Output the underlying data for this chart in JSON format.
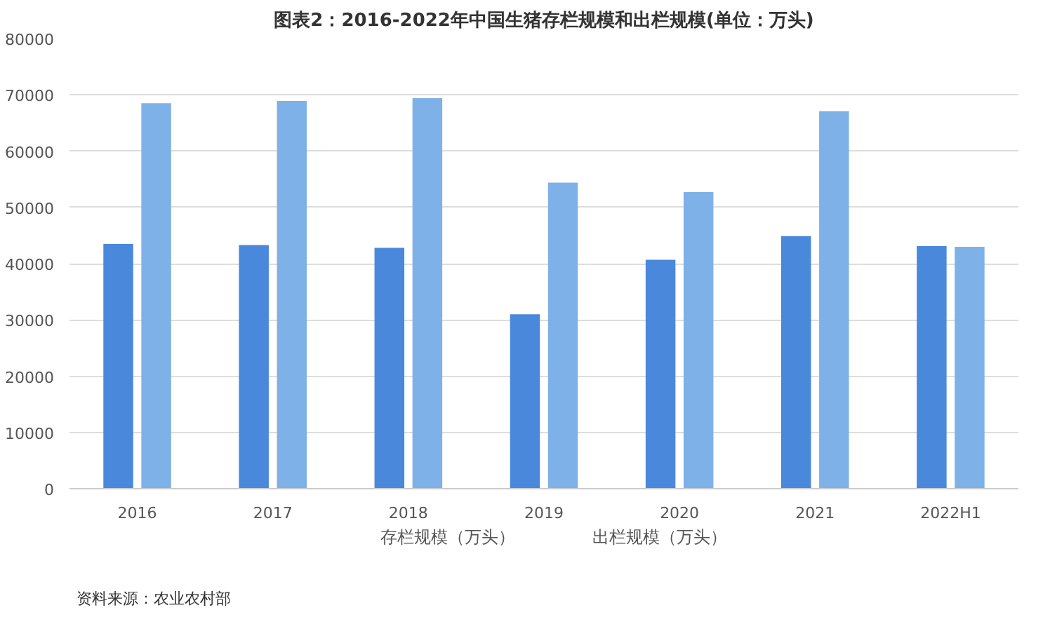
{
  "chart_data": {
    "type": "bar",
    "title": "图表2：2016-2022年中国生猪存栏规模和出栏规模(单位：万头)",
    "categories": [
      "2016",
      "2017",
      "2018",
      "2019",
      "2020",
      "2021",
      "2022H1"
    ],
    "series": [
      {
        "name": "存栏规模（万头）",
        "color": "#4a88dc",
        "values": [
          43500,
          43300,
          42800,
          31000,
          40700,
          44900,
          43100
        ]
      },
      {
        "name": "出栏规模（万头）",
        "color": "#7fb1e9",
        "values": [
          68500,
          68900,
          69400,
          54400,
          52700,
          67100,
          43000
        ]
      }
    ],
    "ylim": [
      0,
      80000
    ],
    "yticks": [
      0,
      10000,
      20000,
      30000,
      40000,
      50000,
      60000,
      70000,
      80000
    ],
    "grid": "y",
    "legend": "bottom",
    "annotations": [
      "资料来源：农业农村部"
    ]
  }
}
